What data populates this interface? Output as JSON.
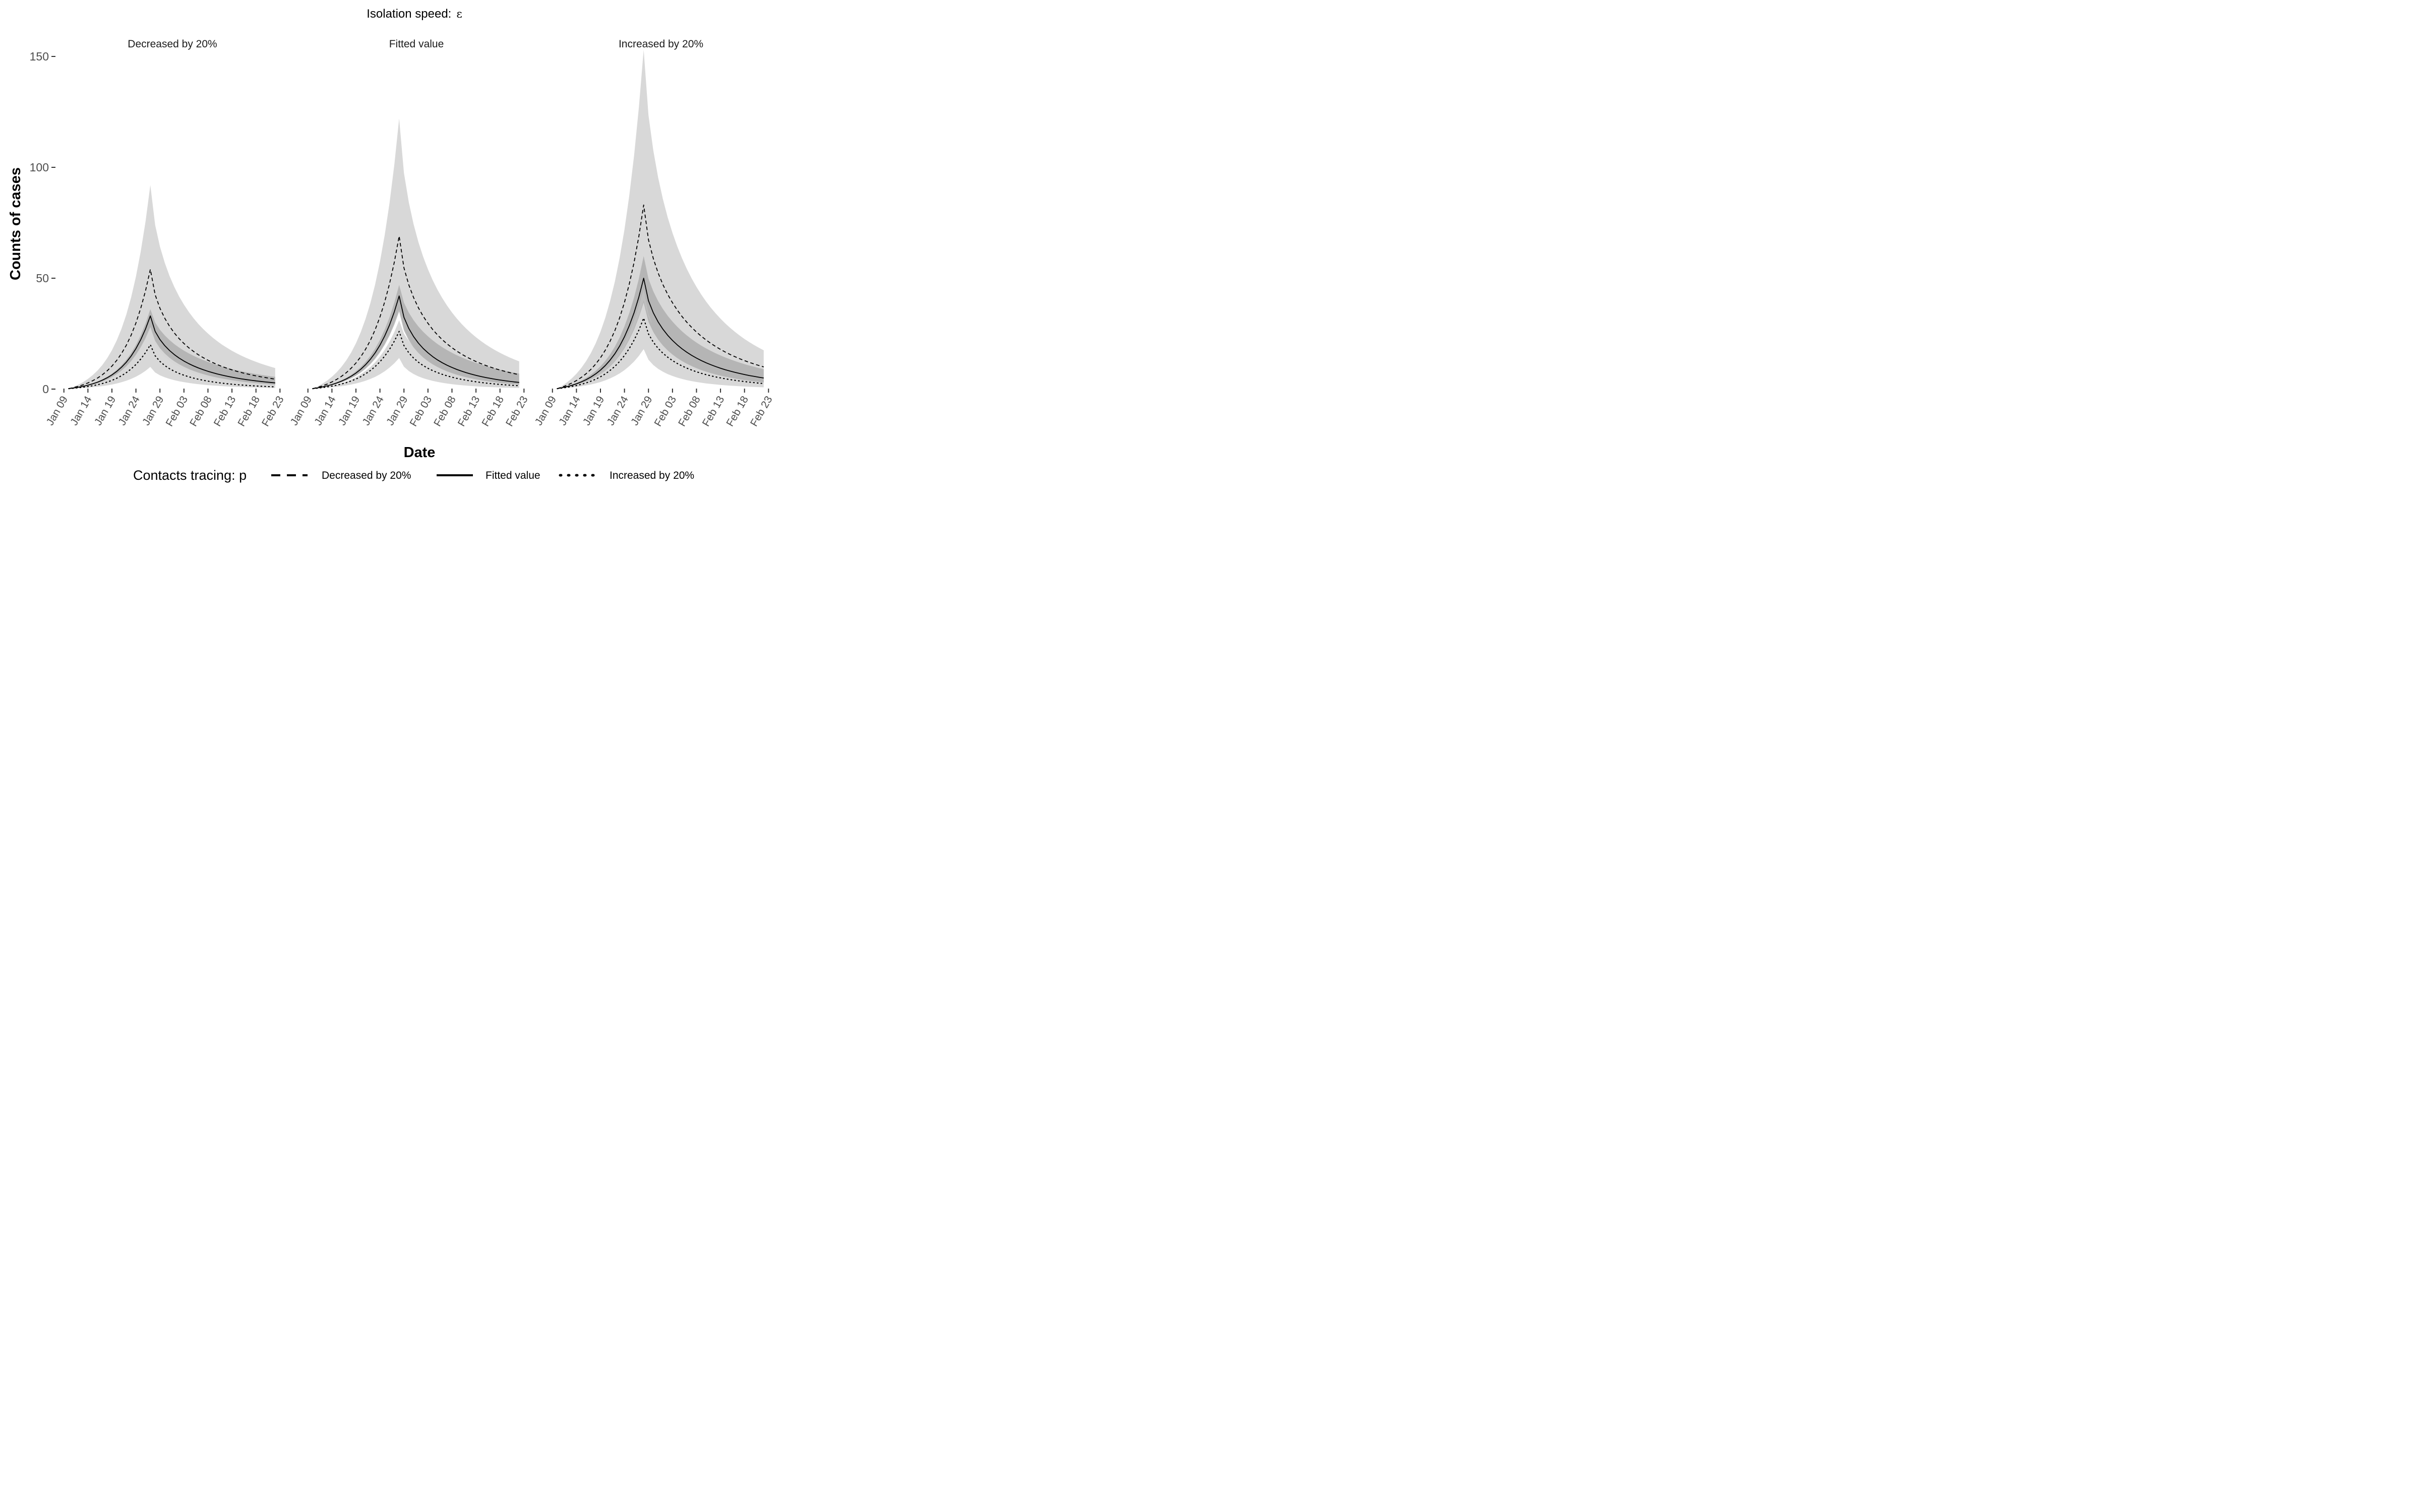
{
  "chart_data": {
    "type": "area",
    "top_title": "Isolation speed:",
    "top_title_symbol": "ε",
    "xlabel": "Date",
    "ylabel": "Counts of cases",
    "ylim": [
      0,
      150
    ],
    "yticks": [
      0,
      50,
      100,
      150
    ],
    "x_dates": [
      "Jan 09",
      "Jan 10",
      "Jan 11",
      "Jan 12",
      "Jan 13",
      "Jan 14",
      "Jan 15",
      "Jan 16",
      "Jan 17",
      "Jan 18",
      "Jan 19",
      "Jan 20",
      "Jan 21",
      "Jan 22",
      "Jan 23",
      "Jan 24",
      "Jan 25",
      "Jan 26",
      "Jan 27",
      "Jan 28",
      "Jan 29",
      "Jan 30",
      "Jan 31",
      "Feb 01",
      "Feb 02",
      "Feb 03",
      "Feb 04",
      "Feb 05",
      "Feb 06",
      "Feb 07",
      "Feb 08",
      "Feb 09",
      "Feb 10",
      "Feb 11",
      "Feb 12",
      "Feb 13",
      "Feb 14",
      "Feb 15",
      "Feb 16",
      "Feb 17",
      "Feb 18",
      "Feb 19",
      "Feb 20",
      "Feb 21",
      "Feb 22"
    ],
    "x_ticks": [
      "Jan 09",
      "Jan 14",
      "Jan 19",
      "Jan 24",
      "Jan 29",
      "Feb 03",
      "Feb 08",
      "Feb 13",
      "Feb 18",
      "Feb 23"
    ],
    "legend": {
      "title": "Contacts tracing: p",
      "position": "bottom",
      "entries": [
        {
          "name": "Decreased by 20%",
          "linetype": "dashed"
        },
        {
          "name": "Fitted value",
          "linetype": "solid"
        },
        {
          "name": "Increased by 20%",
          "linetype": "dotted"
        }
      ]
    },
    "panels": [
      {
        "title": "Decreased by 20%",
        "series": [
          {
            "name": "Decreased by 20%",
            "linetype": "dashed",
            "peak": 54,
            "peak_date": "Jan 27",
            "end_value": 4.5,
            "band": {
              "peak_lower": 27,
              "peak_upper": 92,
              "end_lower": 1.5,
              "end_upper": 9.5
            }
          },
          {
            "name": "Fitted value",
            "linetype": "solid",
            "peak": 33,
            "peak_date": "Jan 27",
            "end_value": 2.8,
            "band": {
              "peak_lower": 28,
              "peak_upper": 36,
              "end_lower": 2.0,
              "end_upper": 5.5
            }
          },
          {
            "name": "Increased by 20%",
            "linetype": "dotted",
            "peak": 20,
            "peak_date": "Jan 27",
            "end_value": 1.0,
            "band": {
              "peak_lower": 10,
              "peak_upper": 28,
              "end_lower": 0.5,
              "end_upper": 2.5
            }
          }
        ]
      },
      {
        "title": "Fitted value",
        "series": [
          {
            "name": "Decreased by 20%",
            "linetype": "dashed",
            "peak": 69,
            "peak_date": "Jan 28",
            "end_value": 6.5,
            "band": {
              "peak_lower": 36,
              "peak_upper": 122,
              "end_lower": 2.0,
              "end_upper": 12.5
            }
          },
          {
            "name": "Fitted value",
            "linetype": "solid",
            "peak": 42,
            "peak_date": "Jan 28",
            "end_value": 3.0,
            "band": {
              "peak_lower": 35,
              "peak_upper": 47,
              "end_lower": 2.0,
              "end_upper": 7.0
            }
          },
          {
            "name": "Increased by 20%",
            "linetype": "dotted",
            "peak": 26,
            "peak_date": "Jan 28",
            "end_value": 1.5,
            "band": {
              "peak_lower": 14,
              "peak_upper": 31,
              "end_lower": 0.5,
              "end_upper": 3.5
            }
          }
        ]
      },
      {
        "title": "Increased by 20%",
        "series": [
          {
            "name": "Decreased by 20%",
            "linetype": "dashed",
            "peak": 83,
            "peak_date": "Jan 28",
            "end_value": 10.0,
            "band": {
              "peak_lower": 45,
              "peak_upper": 153,
              "end_lower": 2.5,
              "end_upper": 17.5
            }
          },
          {
            "name": "Fitted value",
            "linetype": "solid",
            "peak": 50,
            "peak_date": "Jan 28",
            "end_value": 5.0,
            "band": {
              "peak_lower": 39,
              "peak_upper": 60,
              "end_lower": 3.0,
              "end_upper": 9.0
            }
          },
          {
            "name": "Increased by 20%",
            "linetype": "dotted",
            "peak": 32,
            "peak_date": "Jan 28",
            "end_value": 2.5,
            "band": {
              "peak_lower": 18,
              "peak_upper": 40,
              "end_lower": 0.8,
              "end_upper": 5.0
            }
          }
        ]
      }
    ],
    "colors": {
      "outer_band": "#d6d6d6",
      "inner_band": "#a9a9a9",
      "line": "#000000",
      "axis_text": "#4d4d4d"
    }
  }
}
